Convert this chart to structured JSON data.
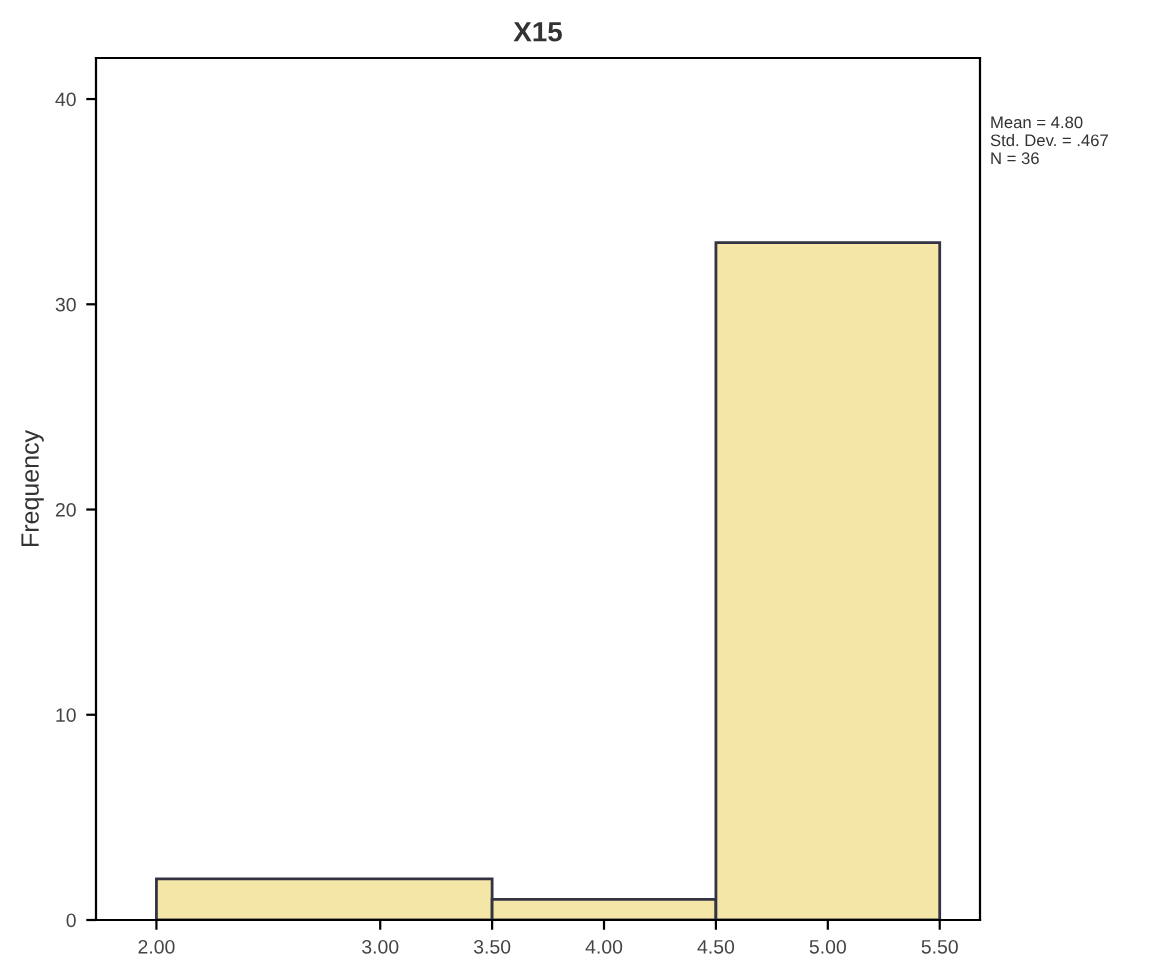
{
  "chart_data": {
    "type": "histogram",
    "title": "X15",
    "ylabel": "Frequency",
    "bins": [
      2.0,
      3.5,
      4.5,
      5.5
    ],
    "values": [
      2,
      1,
      33
    ],
    "color": "#f3e6a6",
    "xlim": [
      1.73,
      5.68
    ],
    "ylim": [
      0,
      42
    ],
    "xticks": [
      {
        "value": 2.0,
        "label": "2.00"
      },
      {
        "value": 3.0,
        "label": "3.00"
      },
      {
        "value": 3.5,
        "label": "3.50"
      },
      {
        "value": 4.0,
        "label": "4.00"
      },
      {
        "value": 4.5,
        "label": "4.50"
      },
      {
        "value": 5.0,
        "label": "5.00"
      },
      {
        "value": 5.5,
        "label": "5.50"
      }
    ],
    "yticks": [
      0,
      10,
      20,
      30,
      40
    ],
    "annotations": [
      "Mean = 4.80\nStd. Dev. = .467\nN = 36"
    ],
    "grid": false
  }
}
